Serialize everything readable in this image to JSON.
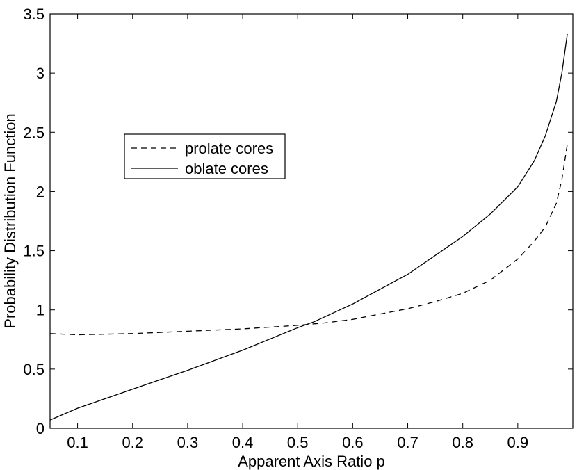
{
  "chart_data": {
    "type": "line",
    "xlabel": "Apparent Axis Ratio p",
    "ylabel": "Probability Distribution Function",
    "xlim": [
      0.05,
      1.0
    ],
    "ylim": [
      0,
      3.5
    ],
    "xticks": [
      0.1,
      0.2,
      0.3,
      0.4,
      0.5,
      0.6,
      0.7,
      0.8,
      0.9
    ],
    "xtick_labels": [
      "0.1",
      "0.2",
      "0.3",
      "0.4",
      "0.5",
      "0.6",
      "0.7",
      "0.8",
      "0.9"
    ],
    "yticks": [
      0,
      0.5,
      1,
      1.5,
      2,
      2.5,
      3,
      3.5
    ],
    "ytick_labels": [
      "0",
      "0.5",
      "1",
      "1.5",
      "2",
      "2.5",
      "3",
      "3.5"
    ],
    "grid": false,
    "legend": {
      "placement": "upper-left",
      "entries": [
        "prolate cores",
        "oblate cores"
      ]
    },
    "series": [
      {
        "name": "prolate cores",
        "style": "dashed",
        "color": "#000000",
        "x": [
          0.05,
          0.1,
          0.2,
          0.3,
          0.4,
          0.5,
          0.55,
          0.6,
          0.7,
          0.75,
          0.8,
          0.85,
          0.9,
          0.93,
          0.95,
          0.97,
          0.98,
          0.99
        ],
        "y": [
          0.8,
          0.79,
          0.8,
          0.82,
          0.84,
          0.87,
          0.89,
          0.92,
          1.01,
          1.07,
          1.14,
          1.25,
          1.43,
          1.58,
          1.7,
          1.9,
          2.1,
          2.4
        ]
      },
      {
        "name": "oblate cores",
        "style": "solid",
        "color": "#000000",
        "x": [
          0.05,
          0.1,
          0.2,
          0.3,
          0.4,
          0.5,
          0.53,
          0.6,
          0.7,
          0.8,
          0.85,
          0.9,
          0.93,
          0.95,
          0.97,
          0.98,
          0.99
        ],
        "y": [
          0.07,
          0.17,
          0.33,
          0.49,
          0.66,
          0.85,
          0.9,
          1.05,
          1.3,
          1.62,
          1.81,
          2.04,
          2.26,
          2.47,
          2.76,
          3.0,
          3.33
        ]
      }
    ]
  }
}
